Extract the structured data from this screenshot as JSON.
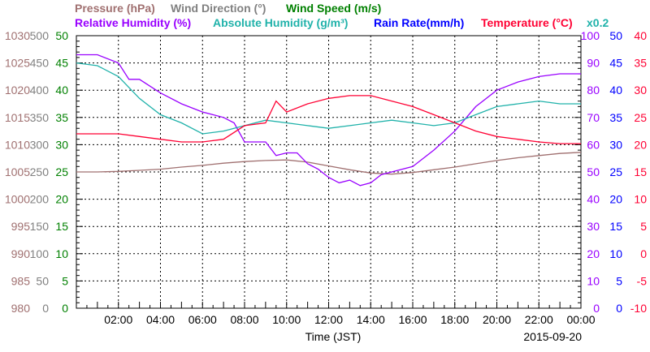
{
  "chart_data": {
    "type": "line",
    "date": "2015-09-20",
    "xlabel": "Time (JST)",
    "x_tick_labels": [
      "02:00",
      "04:00",
      "06:00",
      "08:00",
      "10:00",
      "12:00",
      "14:00",
      "16:00",
      "18:00",
      "20:00",
      "22:00",
      "00:00"
    ],
    "x_range_hours": [
      0,
      24
    ],
    "grid": true,
    "legend": [
      {
        "text": "Pressure (hPa)",
        "color": "#a07070"
      },
      {
        "text": "Wind Direction (°)",
        "color": "#808080"
      },
      {
        "text": "Wind Speed (m/s)",
        "color": "#008000"
      },
      {
        "text": "Relative Humidity (%)",
        "color": "#9900ff"
      },
      {
        "text": "Absolute Humidity (g/m³)",
        "color": "#20b2aa"
      },
      {
        "text": "Rain Rate(mm/h)",
        "color": "#0000ff"
      },
      {
        "text": "Temperature (°C)",
        "color": "#ff0033"
      },
      {
        "text": "x0.2",
        "color": "#20b2aa"
      }
    ],
    "axes": [
      {
        "name": "pressure",
        "ylim": [
          980,
          1030
        ],
        "ticks": [
          "980",
          "985",
          "990",
          "995",
          "1000",
          "1005",
          "1010",
          "1015",
          "1020",
          "1025",
          "1030"
        ],
        "color": "#a07070"
      },
      {
        "name": "wind_direction",
        "ylim": [
          0,
          500
        ],
        "ticks": [
          "0",
          "50",
          "100",
          "150",
          "200",
          "250",
          "300",
          "350",
          "400",
          "450",
          "500"
        ],
        "color": "#808080"
      },
      {
        "name": "wind_speed",
        "ylim": [
          0,
          50
        ],
        "ticks": [
          "0",
          "5",
          "10",
          "15",
          "20",
          "25",
          "30",
          "35",
          "40",
          "45",
          "50"
        ],
        "color": "#008000"
      },
      {
        "name": "relative_humidity",
        "ylim": [
          0,
          100
        ],
        "ticks": [
          "0",
          "10",
          "20",
          "30",
          "40",
          "50",
          "60",
          "70",
          "80",
          "90",
          "100"
        ],
        "color": "#9900ff"
      },
      {
        "name": "rain_rate",
        "ylim": [
          0,
          50
        ],
        "ticks": [
          "0",
          "5",
          "10",
          "15",
          "20",
          "25",
          "30",
          "35",
          "40",
          "45",
          "50"
        ],
        "color": "#0000ff"
      },
      {
        "name": "temperature",
        "ylim": [
          -10,
          40
        ],
        "ticks": [
          "-10",
          "-5",
          "0",
          "5",
          "10",
          "15",
          "20",
          "25",
          "30",
          "35",
          "40"
        ],
        "color": "#ff0033"
      }
    ],
    "series": [
      {
        "name": "Pressure (hPa)",
        "axis": "pressure",
        "color": "#a07070",
        "x": [
          0,
          1,
          2,
          3,
          4,
          5,
          6,
          7,
          8,
          9,
          10,
          11,
          12,
          13,
          14,
          15,
          16,
          17,
          18,
          19,
          20,
          21,
          22,
          23,
          24
        ],
        "values": [
          1005.0,
          1005.0,
          1005.1,
          1005.3,
          1005.5,
          1005.9,
          1006.2,
          1006.6,
          1006.9,
          1007.1,
          1007.2,
          1006.8,
          1006.1,
          1005.4,
          1004.8,
          1004.6,
          1004.9,
          1005.4,
          1005.9,
          1006.5,
          1007.1,
          1007.6,
          1008.0,
          1008.4,
          1008.6
        ]
      },
      {
        "name": "Relative Humidity (%)",
        "axis": "relative_humidity",
        "color": "#9900ff",
        "x": [
          0,
          1,
          2,
          2.5,
          3,
          4,
          5,
          6,
          7,
          7.5,
          8,
          8.5,
          9,
          9.5,
          10,
          10.5,
          11,
          11.5,
          12,
          12.5,
          13,
          13.5,
          14,
          14.5,
          15,
          16,
          17,
          18,
          19,
          20,
          21,
          22,
          23,
          24
        ],
        "values": [
          93,
          93,
          90,
          84,
          84,
          79,
          75,
          72,
          70,
          68,
          61,
          61,
          61,
          56,
          57,
          57,
          53,
          51,
          48,
          46,
          47,
          45,
          46,
          49,
          50,
          52,
          58,
          65,
          74,
          80,
          83,
          85,
          86,
          86
        ]
      },
      {
        "name": "Absolute Humidity (g/m³)",
        "axis": "relative_humidity",
        "color": "#20b2aa",
        "x": [
          0,
          1,
          2,
          3,
          4,
          5,
          6,
          7,
          8,
          9,
          10,
          11,
          12,
          13,
          14,
          15,
          16,
          17,
          18,
          19,
          20,
          21,
          22,
          23,
          24
        ],
        "values": [
          90,
          89,
          85,
          77,
          71,
          68,
          64,
          65,
          67,
          69,
          68,
          67,
          66,
          67,
          68,
          69,
          68,
          67,
          68,
          71,
          74,
          75,
          76,
          75,
          75
        ]
      },
      {
        "name": "Temperature (°C)",
        "axis": "temperature",
        "color": "#ff0033",
        "x": [
          0,
          1,
          2,
          3,
          4,
          5,
          6,
          7,
          8,
          9,
          9.5,
          10,
          11,
          12,
          13,
          14,
          15,
          16,
          17,
          18,
          19,
          20,
          21,
          22,
          23,
          24
        ],
        "values": [
          22,
          22,
          22,
          21.5,
          21,
          20.5,
          20.5,
          21,
          23.5,
          24,
          28,
          26,
          27.5,
          28.5,
          29,
          29,
          28,
          27,
          25.5,
          24,
          22.5,
          21.5,
          21,
          20.5,
          20.2,
          20.2
        ]
      },
      {
        "name": "Wind Speed (m/s)",
        "axis": "wind_speed",
        "color": "#008000",
        "x": [],
        "values": []
      },
      {
        "name": "Rain Rate(mm/h)",
        "axis": "rain_rate",
        "color": "#0000ff",
        "x": [],
        "values": []
      }
    ]
  }
}
